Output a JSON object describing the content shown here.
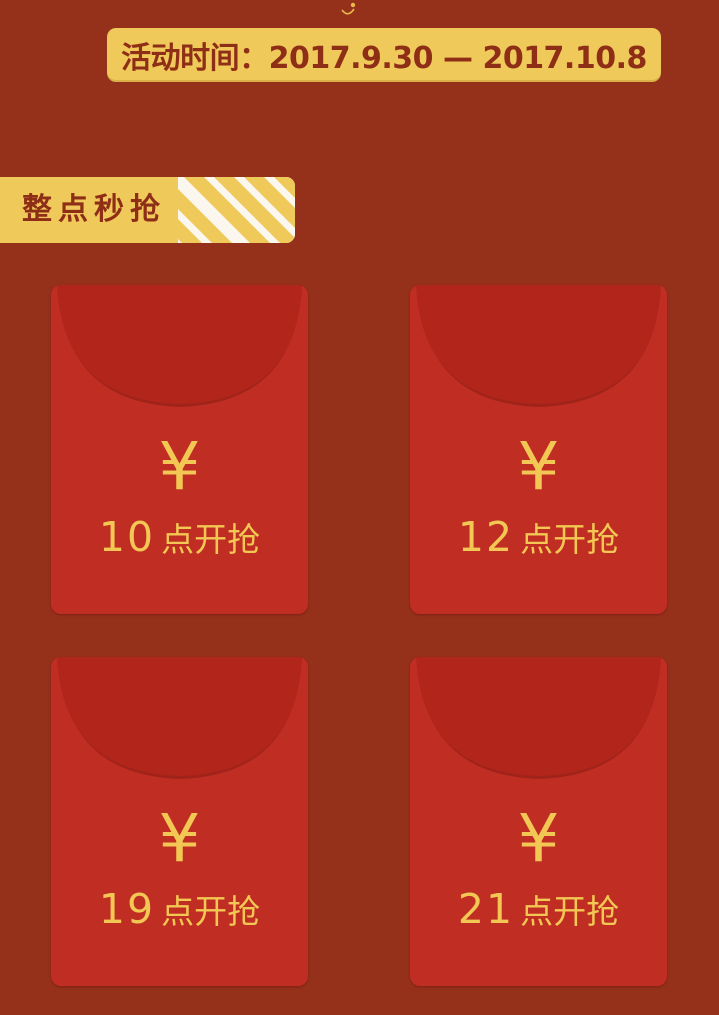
{
  "banner": {
    "date_text": "活动时间：2017.9.30 — 2017.10.8"
  },
  "section": {
    "title": "整点秒抢"
  },
  "envelopes": [
    {
      "icon": "¥",
      "hour": "10",
      "suffix": "点开抢"
    },
    {
      "icon": "¥",
      "hour": "12",
      "suffix": "点开抢"
    },
    {
      "icon": "¥",
      "hour": "19",
      "suffix": "点开抢"
    },
    {
      "icon": "¥",
      "hour": "21",
      "suffix": "点开抢"
    }
  ],
  "icons": {
    "envelope": "yuan-icon",
    "ornament": "ornament-icon",
    "stripes": "stripes-decoration"
  },
  "colors": {
    "background": "#95301b",
    "envelope": "#c02d23",
    "envelope_flap": "#b2251b",
    "gold": "#efc95a",
    "text_dark": "#8f2e17"
  }
}
